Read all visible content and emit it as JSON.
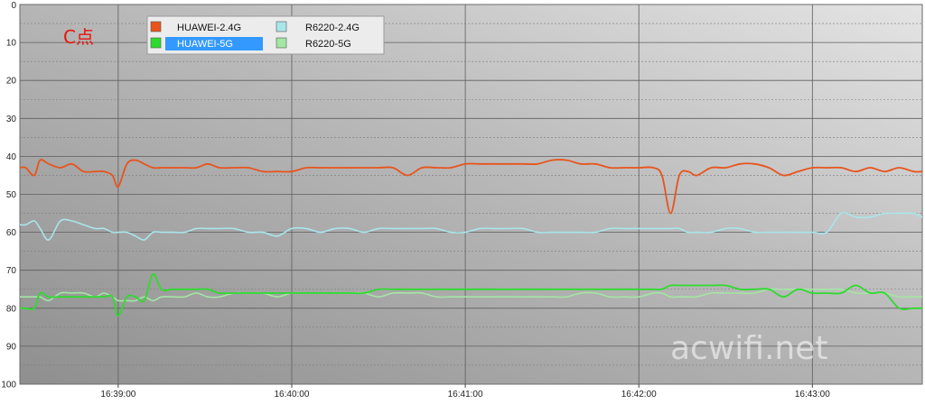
{
  "chart_data": {
    "type": "line",
    "title": "C点",
    "watermark": "acwifi.net",
    "y_axis": {
      "range": [
        0,
        100
      ],
      "inverted": true,
      "ticks": [
        "0",
        "10",
        "20",
        "30",
        "40",
        "50",
        "60",
        "70",
        "80",
        "90",
        "100"
      ]
    },
    "x_axis": {
      "type": "time",
      "range": [
        "16:38:26",
        "16:43:38"
      ],
      "ticks": [
        "16:39:00",
        "16:40:00",
        "16:41:00",
        "16:42:00",
        "16:43:00"
      ]
    },
    "grid": true,
    "legend_position": "top-left",
    "x": [
      "16:38:26",
      "16:38:28",
      "16:38:31",
      "16:38:33",
      "16:38:36",
      "16:38:40",
      "16:38:44",
      "16:38:48",
      "16:38:52",
      "16:38:55",
      "16:38:58",
      "16:39:00",
      "16:39:03",
      "16:39:06",
      "16:39:09",
      "16:39:12",
      "16:39:15",
      "16:39:19",
      "16:39:23",
      "16:39:27",
      "16:39:31",
      "16:39:35",
      "16:39:40",
      "16:39:45",
      "16:39:50",
      "16:39:55",
      "16:40:00",
      "16:40:05",
      "16:40:10",
      "16:40:15",
      "16:40:20",
      "16:40:25",
      "16:40:30",
      "16:40:35",
      "16:40:40",
      "16:40:45",
      "16:40:50",
      "16:40:55",
      "16:41:00",
      "16:41:05",
      "16:41:10",
      "16:41:15",
      "16:41:20",
      "16:41:25",
      "16:41:30",
      "16:41:35",
      "16:41:40",
      "16:41:45",
      "16:41:50",
      "16:41:55",
      "16:42:00",
      "16:42:05",
      "16:42:08",
      "16:42:11",
      "16:42:14",
      "16:42:17",
      "16:42:20",
      "16:42:25",
      "16:42:30",
      "16:42:35",
      "16:42:40",
      "16:42:45",
      "16:42:50",
      "16:42:55",
      "16:43:00",
      "16:43:05",
      "16:43:10",
      "16:43:15",
      "16:43:20",
      "16:43:25",
      "16:43:30",
      "16:43:35",
      "16:43:38"
    ],
    "series": [
      {
        "name": "HUAWEI-2.4G",
        "color": "#e8541c",
        "values": [
          43,
          43,
          45,
          41,
          42,
          43,
          42,
          44,
          44,
          44,
          45,
          48,
          42,
          41,
          42,
          43,
          43,
          43,
          43,
          43,
          42,
          43,
          43,
          43,
          44,
          44,
          44,
          43,
          43,
          43,
          43,
          43,
          43,
          43,
          45,
          43,
          43,
          43,
          42,
          42,
          42,
          42,
          42,
          42,
          41,
          41,
          42,
          42,
          43,
          43,
          43,
          43,
          45,
          55,
          45,
          44,
          45,
          43,
          43,
          42,
          42,
          43,
          45,
          44,
          43,
          43,
          43,
          44,
          43,
          44,
          43,
          44,
          44
        ]
      },
      {
        "name": "HUAWEI-5G",
        "color": "#2edb2e",
        "values": [
          80,
          80,
          80,
          76,
          77,
          77,
          77,
          77,
          77,
          77,
          77,
          82,
          77,
          77,
          78,
          71,
          75,
          75,
          75,
          75,
          75,
          76,
          76,
          76,
          76,
          76,
          76,
          76,
          76,
          76,
          76,
          76,
          75,
          75,
          75,
          75,
          75,
          75,
          75,
          75,
          75,
          75,
          75,
          75,
          75,
          75,
          75,
          75,
          75,
          75,
          75,
          75,
          75,
          74,
          74,
          74,
          74,
          74,
          74,
          75,
          75,
          75,
          77,
          75,
          76,
          76,
          76,
          74,
          76,
          76,
          80,
          80,
          80
        ]
      },
      {
        "name": "R6220-2.4G",
        "color": "#a8e6ea",
        "values": [
          58,
          58,
          57,
          59,
          62,
          57,
          57,
          58,
          59,
          59,
          60,
          60,
          60,
          61,
          62,
          60,
          60,
          60,
          60,
          59,
          59,
          59,
          59,
          60,
          60,
          61,
          59,
          59,
          60,
          59,
          59,
          60,
          59,
          59,
          59,
          59,
          59,
          60,
          60,
          59,
          59,
          59,
          59,
          60,
          60,
          60,
          60,
          60,
          59,
          59,
          59,
          59,
          59,
          59,
          59,
          60,
          60,
          60,
          59,
          59,
          60,
          60,
          60,
          60,
          60,
          60,
          55,
          56,
          56,
          55,
          55,
          55,
          56
        ]
      },
      {
        "name": "R6220-5G",
        "color": "#a4e6a4",
        "values": [
          77,
          77,
          77,
          77,
          78,
          76,
          76,
          76,
          77,
          76,
          77,
          78,
          78,
          78,
          77,
          78,
          77,
          77,
          77,
          76,
          77,
          77,
          76,
          76,
          76,
          77,
          76,
          76,
          76,
          76,
          76,
          76,
          77,
          76,
          76,
          76,
          77,
          77,
          77,
          77,
          77,
          77,
          77,
          77,
          77,
          77,
          76,
          76,
          77,
          77,
          77,
          76,
          76,
          77,
          77,
          77,
          77,
          76,
          76,
          76,
          76,
          75,
          75,
          75,
          75,
          75,
          75,
          76,
          76,
          76,
          77,
          77,
          77
        ]
      }
    ]
  }
}
